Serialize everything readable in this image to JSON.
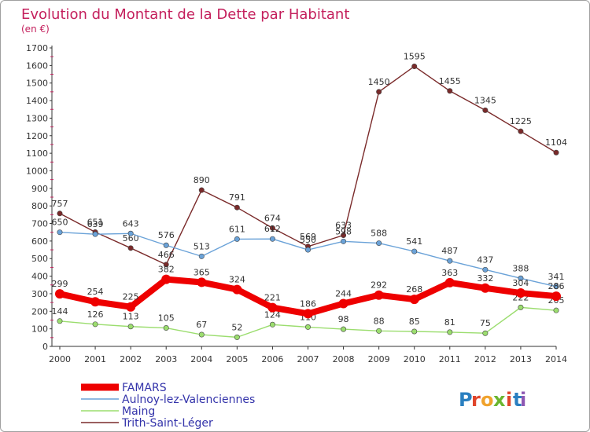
{
  "header": {
    "title": "Evolution du Montant de la Dette par Habitant",
    "unit": "(en €)"
  },
  "brand": {
    "letters": [
      "P",
      "r",
      "o",
      "x",
      "i",
      "t",
      "i"
    ],
    "letter_colors": [
      "#2a7fc0",
      "#e0452b",
      "#f0a22c",
      "#6ab52f",
      "#e0452b",
      "#2a7fc0",
      "#8e58b3"
    ]
  },
  "chart_data": {
    "type": "line",
    "title": "Evolution du Montant de la Dette par Habitant",
    "subtitle": "(en €)",
    "xlabel": "",
    "ylabel": "",
    "x": [
      "2000",
      "2001",
      "2002",
      "2003",
      "2004",
      "2005",
      "2006",
      "2007",
      "2008",
      "2009",
      "2010",
      "2011",
      "2012",
      "2013",
      "2014"
    ],
    "ylim": [
      0,
      1700
    ],
    "yticks": [
      0,
      100,
      200,
      300,
      400,
      500,
      600,
      700,
      800,
      900,
      1000,
      1100,
      1200,
      1300,
      1400,
      1500,
      1600,
      1700
    ],
    "grid": false,
    "legend_position": "bottom-left",
    "series": [
      {
        "name": "Trith-Saint-Léger",
        "color": "#7a2a2a",
        "values": [
          757,
          651,
          560,
          466,
          890,
          791,
          674,
          569,
          633,
          1450,
          1595,
          1455,
          1345,
          1225,
          1104
        ]
      },
      {
        "name": "Aulnoy-lez-Valenciennes",
        "color": "#6aa2d8",
        "values": [
          650,
          639,
          643,
          576,
          513,
          611,
          612,
          550,
          598,
          588,
          541,
          487,
          437,
          388,
          341
        ]
      },
      {
        "name": "Maing",
        "color": "#9bdd6e",
        "values": [
          144,
          126,
          113,
          105,
          67,
          52,
          124,
          110,
          98,
          88,
          85,
          81,
          75,
          222,
          205
        ]
      },
      {
        "name": "FAMARS",
        "color": "#ee0000",
        "values": [
          299,
          254,
          225,
          382,
          365,
          324,
          221,
          186,
          244,
          292,
          268,
          363,
          332,
          304,
          286
        ]
      }
    ],
    "legend": [
      {
        "name": "FAMARS",
        "color": "#ee0000"
      },
      {
        "name": "Aulnoy-lez-Valenciennes",
        "color": "#6aa2d8"
      },
      {
        "name": "Maing",
        "color": "#9bdd6e"
      },
      {
        "name": "Trith-Saint-Léger",
        "color": "#7a2a2a"
      }
    ]
  }
}
